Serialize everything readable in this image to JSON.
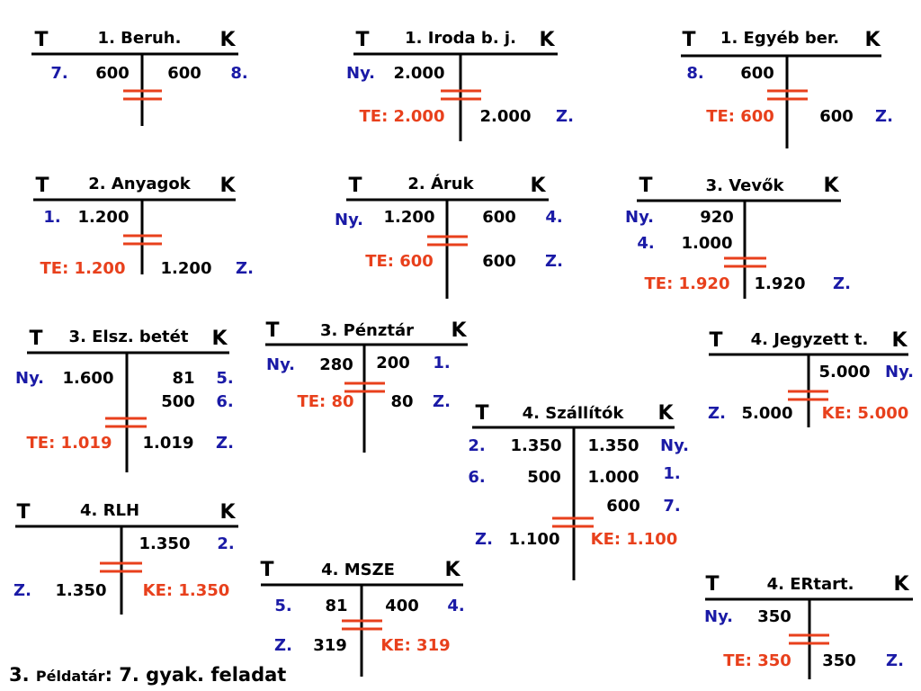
{
  "accounts": [
    {
      "debit": "T",
      "title": "1. Beruh.",
      "credit": "K",
      "entries": [
        "7.",
        "600",
        "600",
        "8."
      ]
    },
    {
      "debit": "T",
      "title": "1. Iroda b. j.",
      "credit": "K",
      "entries": [
        "Ny.",
        "2.000",
        "TE: 2.000",
        "2.000",
        "Z."
      ]
    },
    {
      "debit": "T",
      "title": "1. Egyéb ber.",
      "credit": "K",
      "entries": [
        "8.",
        "600",
        "TE: 600",
        "600",
        "Z."
      ]
    },
    {
      "debit": "T",
      "title": "2. Anyagok",
      "credit": "K",
      "entries": [
        "1.",
        "1.200",
        "TE: 1.200",
        "1.200",
        "Z."
      ]
    },
    {
      "debit": "T",
      "title": "2. Áruk",
      "credit": "K",
      "entries": [
        "Ny.",
        "1.200",
        "600",
        "4.",
        "TE: 600",
        "600",
        "Z."
      ]
    },
    {
      "debit": "T",
      "title": "3. Vevők",
      "credit": "K",
      "entries": [
        "Ny.",
        "920",
        "4.",
        "1.000",
        "TE: 1.920",
        "1.920",
        "Z."
      ]
    },
    {
      "debit": "T",
      "title": "3. Elsz. betét",
      "credit": "K",
      "entries": [
        "Ny.",
        "1.600",
        "81",
        "5.",
        "500",
        "6.",
        "TE: 1.019",
        "1.019",
        "Z."
      ]
    },
    {
      "debit": "T",
      "title": "3. Pénztár",
      "credit": "K",
      "entries": [
        "Ny.",
        "280",
        "200",
        "1.",
        "TE: 80",
        "80",
        "Z."
      ]
    },
    {
      "debit": "T",
      "title": "4. Jegyzett t.",
      "credit": "K",
      "entries": [
        "5.000",
        "Ny.",
        "Z.",
        "5.000",
        "KE: 5.000"
      ]
    },
    {
      "debit": "T",
      "title": "4. Szállítók",
      "credit": "K",
      "entries": [
        "2.",
        "1.350",
        "1.350",
        "Ny.",
        "6.",
        "500",
        "1.000",
        "1.",
        "600",
        "7.",
        "Z.",
        "1.100",
        "KE: 1.100"
      ]
    },
    {
      "debit": "T",
      "title": "4. RLH",
      "credit": "K",
      "entries": [
        "1.350",
        "2.",
        "Z.",
        "1.350",
        "KE: 1.350"
      ]
    },
    {
      "debit": "T",
      "title": "4. MSZE",
      "credit": "K",
      "entries": [
        "5.",
        "81",
        "400",
        "4.",
        "Z.",
        "319",
        "KE: 319"
      ]
    },
    {
      "debit": "T",
      "title": "4. ERtart.",
      "credit": "K",
      "entries": [
        "Ny.",
        "350",
        "TE: 350",
        "350",
        "Z."
      ]
    }
  ],
  "footer": {
    "number": "3. ",
    "source": "Példatár",
    "task": ": 7. gyak. feladat"
  }
}
